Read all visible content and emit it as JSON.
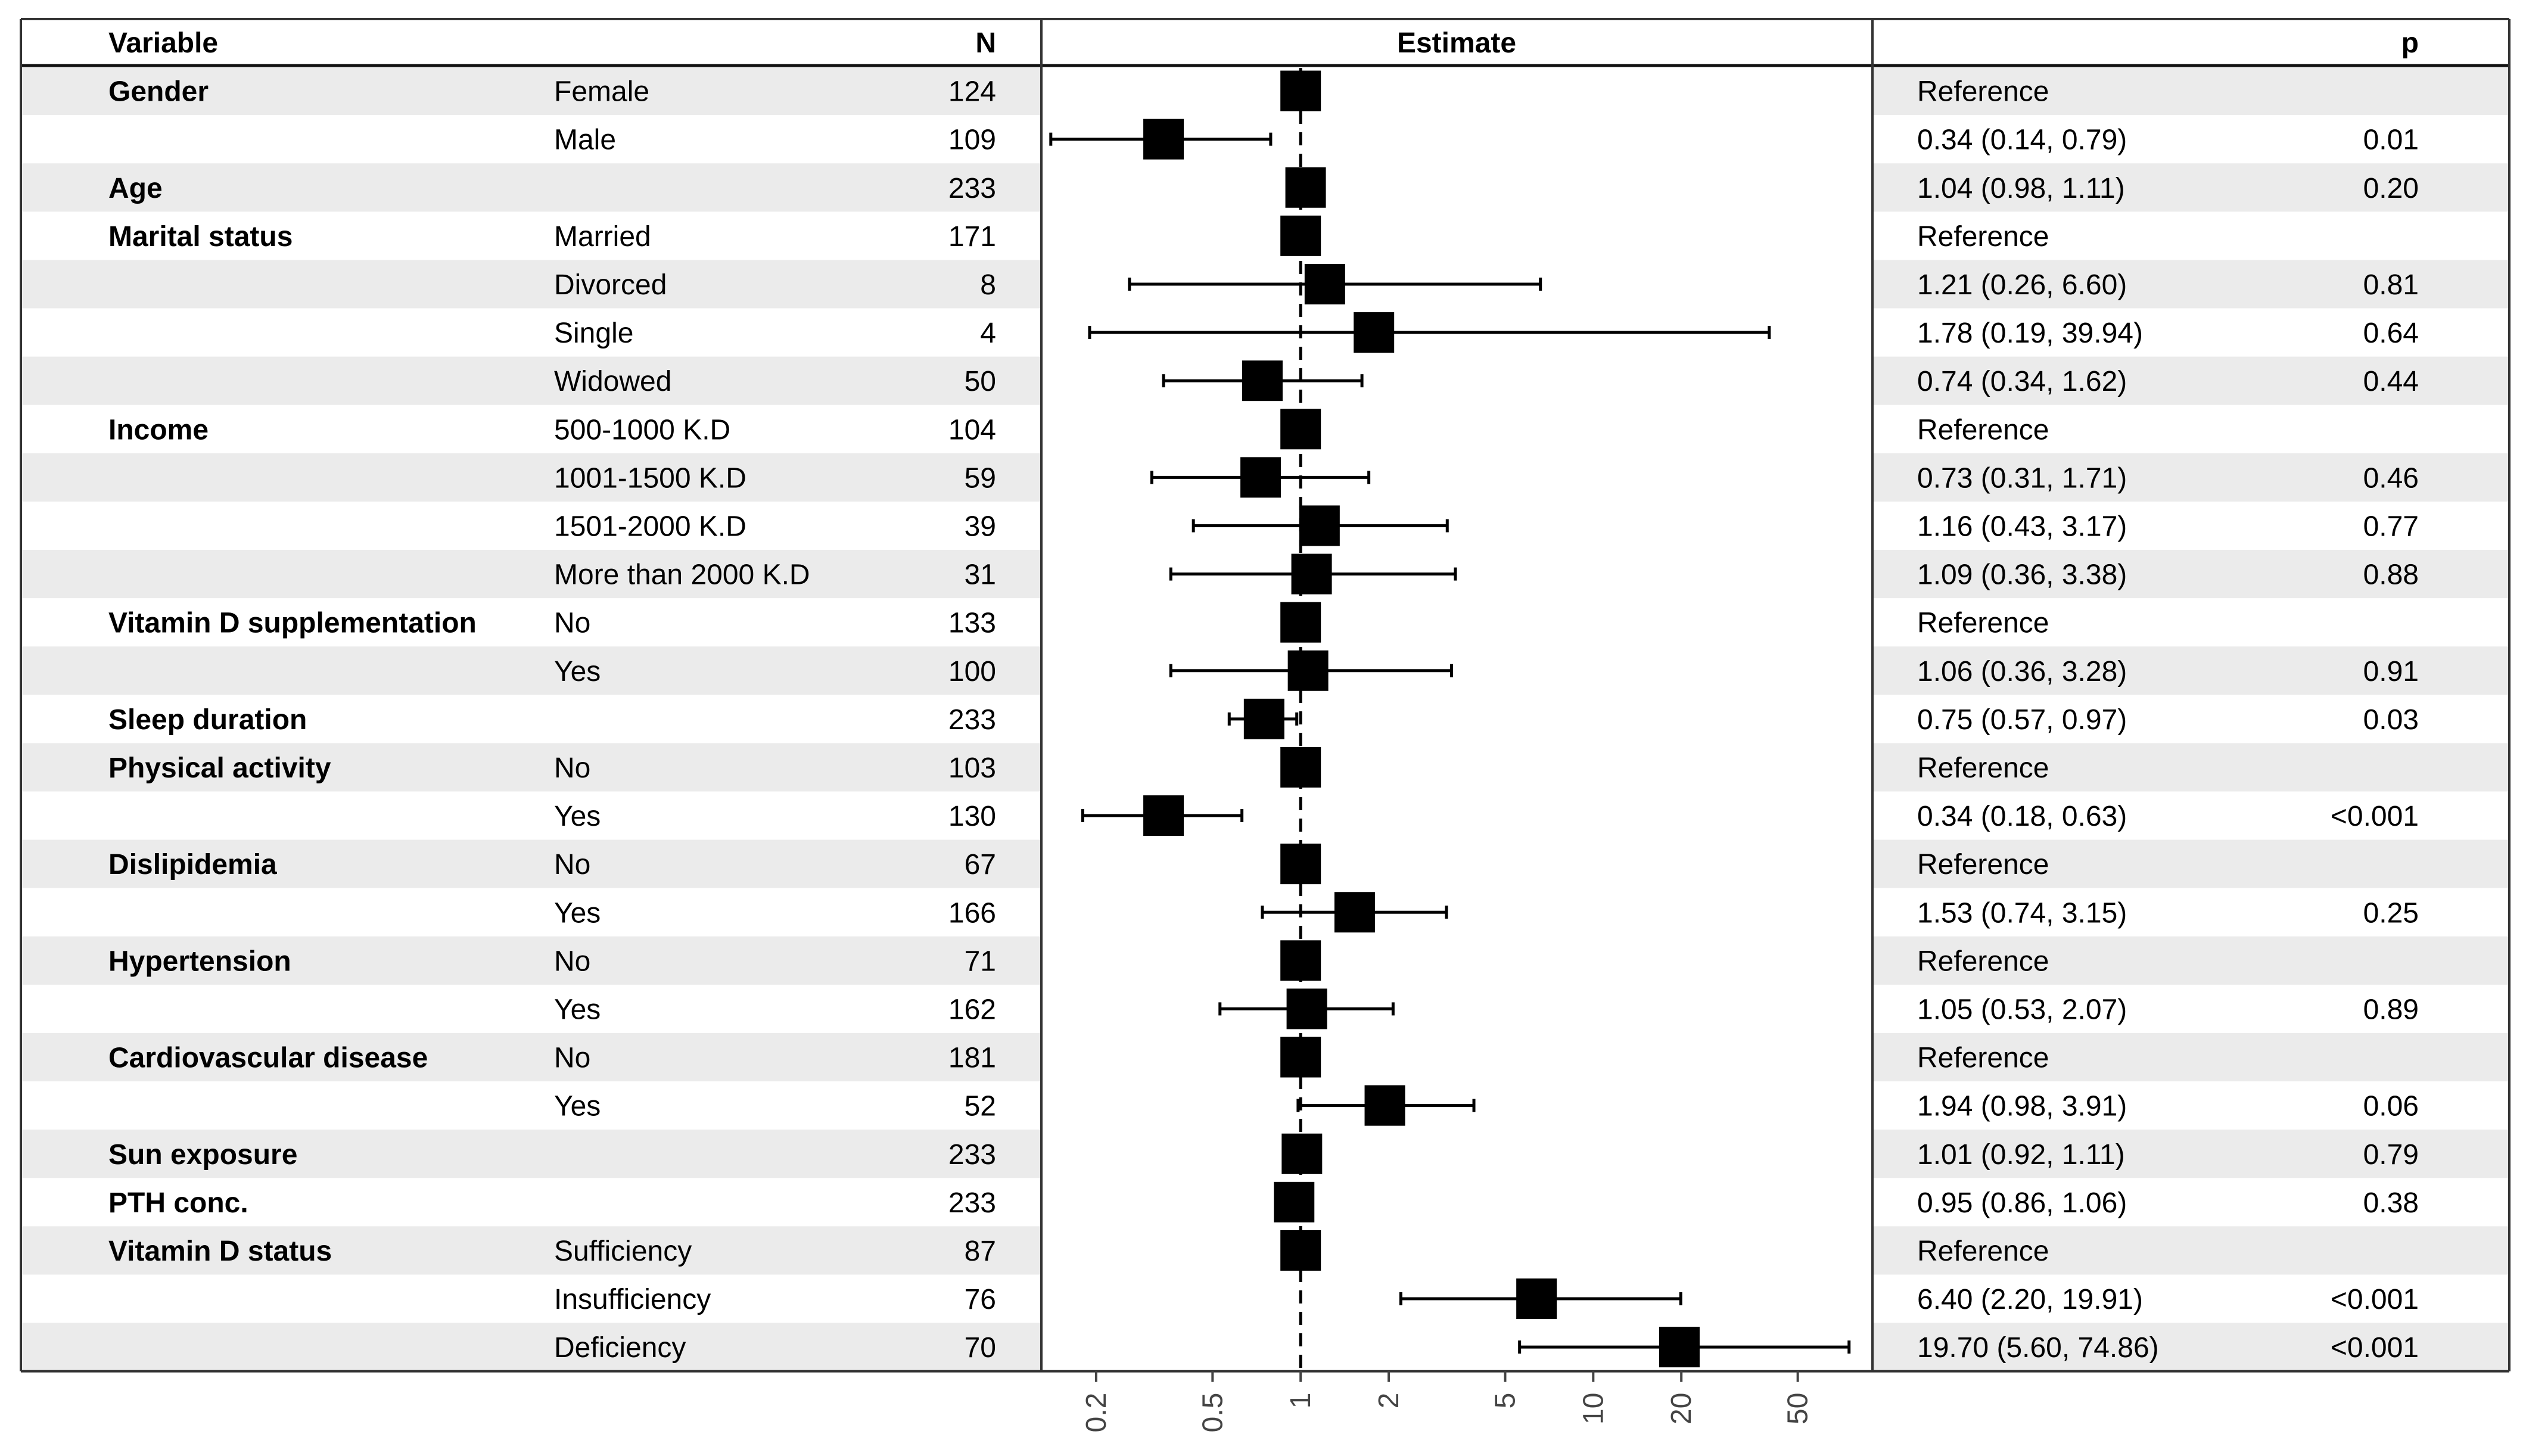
{
  "chart_data": {
    "type": "forest",
    "headers": {
      "variable": "Variable",
      "n": "N",
      "estimate": "Estimate",
      "p": "p"
    },
    "x_axis": {
      "scale": "log",
      "ticks": [
        0.2,
        0.5,
        1,
        2,
        5,
        10,
        20,
        50
      ],
      "reference_line": 1,
      "range": [
        0.13,
        90
      ]
    },
    "colors": {
      "band": "#ebebeb",
      "point": "#000000",
      "line": "#000000",
      "background": "#ffffff"
    },
    "rows": [
      {
        "variable": "Gender",
        "level": "Female",
        "n": "124",
        "estimate_text": "Reference",
        "p": "",
        "est": 1,
        "lo": null,
        "hi": null
      },
      {
        "variable": "",
        "level": "Male",
        "n": "109",
        "estimate_text": "0.34 (0.14, 0.79)",
        "p": "0.01",
        "est": 0.34,
        "lo": 0.14,
        "hi": 0.79
      },
      {
        "variable": "Age",
        "level": "",
        "n": "233",
        "estimate_text": "1.04 (0.98, 1.11)",
        "p": "0.20",
        "est": 1.04,
        "lo": 0.98,
        "hi": 1.11
      },
      {
        "variable": "Marital status",
        "level": "Married",
        "n": "171",
        "estimate_text": "Reference",
        "p": "",
        "est": 1,
        "lo": null,
        "hi": null
      },
      {
        "variable": "",
        "level": "Divorced",
        "n": "8",
        "estimate_text": "1.21 (0.26, 6.60)",
        "p": "0.81",
        "est": 1.21,
        "lo": 0.26,
        "hi": 6.6
      },
      {
        "variable": "",
        "level": "Single",
        "n": "4",
        "estimate_text": "1.78 (0.19, 39.94)",
        "p": "0.64",
        "est": 1.78,
        "lo": 0.19,
        "hi": 39.94
      },
      {
        "variable": "",
        "level": "Widowed",
        "n": "50",
        "estimate_text": "0.74 (0.34, 1.62)",
        "p": "0.44",
        "est": 0.74,
        "lo": 0.34,
        "hi": 1.62
      },
      {
        "variable": "Income",
        "level": "500-1000 K.D",
        "n": "104",
        "estimate_text": "Reference",
        "p": "",
        "est": 1,
        "lo": null,
        "hi": null
      },
      {
        "variable": "",
        "level": "1001-1500 K.D",
        "n": "59",
        "estimate_text": "0.73 (0.31, 1.71)",
        "p": "0.46",
        "est": 0.73,
        "lo": 0.31,
        "hi": 1.71
      },
      {
        "variable": "",
        "level": "1501-2000 K.D",
        "n": "39",
        "estimate_text": "1.16 (0.43, 3.17)",
        "p": "0.77",
        "est": 1.16,
        "lo": 0.43,
        "hi": 3.17
      },
      {
        "variable": "",
        "level": "More than 2000 K.D",
        "n": "31",
        "estimate_text": "1.09 (0.36, 3.38)",
        "p": "0.88",
        "est": 1.09,
        "lo": 0.36,
        "hi": 3.38
      },
      {
        "variable": "Vitamin D supplementation",
        "level": "No",
        "n": "133",
        "estimate_text": "Reference",
        "p": "",
        "est": 1,
        "lo": null,
        "hi": null
      },
      {
        "variable": "",
        "level": "Yes",
        "n": "100",
        "estimate_text": "1.06 (0.36, 3.28)",
        "p": "0.91",
        "est": 1.06,
        "lo": 0.36,
        "hi": 3.28
      },
      {
        "variable": "Sleep duration",
        "level": "",
        "n": "233",
        "estimate_text": "0.75 (0.57, 0.97)",
        "p": "0.03",
        "est": 0.75,
        "lo": 0.57,
        "hi": 0.97
      },
      {
        "variable": "Physical activity",
        "level": "No",
        "n": "103",
        "estimate_text": "Reference",
        "p": "",
        "est": 1,
        "lo": null,
        "hi": null
      },
      {
        "variable": "",
        "level": "Yes",
        "n": "130",
        "estimate_text": "0.34 (0.18, 0.63)",
        "p": "<0.001",
        "est": 0.34,
        "lo": 0.18,
        "hi": 0.63
      },
      {
        "variable": "Dislipidemia",
        "level": "No",
        "n": "67",
        "estimate_text": "Reference",
        "p": "",
        "est": 1,
        "lo": null,
        "hi": null
      },
      {
        "variable": "",
        "level": "Yes",
        "n": "166",
        "estimate_text": "1.53 (0.74, 3.15)",
        "p": "0.25",
        "est": 1.53,
        "lo": 0.74,
        "hi": 3.15
      },
      {
        "variable": "Hypertension",
        "level": "No",
        "n": "71",
        "estimate_text": "Reference",
        "p": "",
        "est": 1,
        "lo": null,
        "hi": null
      },
      {
        "variable": "",
        "level": "Yes",
        "n": "162",
        "estimate_text": "1.05 (0.53, 2.07)",
        "p": "0.89",
        "est": 1.05,
        "lo": 0.53,
        "hi": 2.07
      },
      {
        "variable": "Cardiovascular disease",
        "level": "No",
        "n": "181",
        "estimate_text": "Reference",
        "p": "",
        "est": 1,
        "lo": null,
        "hi": null
      },
      {
        "variable": "",
        "level": "Yes",
        "n": "52",
        "estimate_text": "1.94 (0.98, 3.91)",
        "p": "0.06",
        "est": 1.94,
        "lo": 0.98,
        "hi": 3.91
      },
      {
        "variable": "Sun exposure",
        "level": "",
        "n": "233",
        "estimate_text": "1.01 (0.92, 1.11)",
        "p": "0.79",
        "est": 1.01,
        "lo": 0.92,
        "hi": 1.11
      },
      {
        "variable": "PTH conc.",
        "level": "",
        "n": "233",
        "estimate_text": "0.95 (0.86, 1.06)",
        "p": "0.38",
        "est": 0.95,
        "lo": 0.86,
        "hi": 1.06
      },
      {
        "variable": "Vitamin D status",
        "level": "Sufficiency",
        "n": "87",
        "estimate_text": "Reference",
        "p": "",
        "est": 1,
        "lo": null,
        "hi": null
      },
      {
        "variable": "",
        "level": "Insufficiency",
        "n": "76",
        "estimate_text": "6.40 (2.20, 19.91)",
        "p": "<0.001",
        "est": 6.4,
        "lo": 2.2,
        "hi": 19.91
      },
      {
        "variable": "",
        "level": "Deficiency",
        "n": "70",
        "estimate_text": "19.70 (5.60, 74.86)",
        "p": "<0.001",
        "est": 19.7,
        "lo": 5.6,
        "hi": 74.86
      }
    ]
  }
}
